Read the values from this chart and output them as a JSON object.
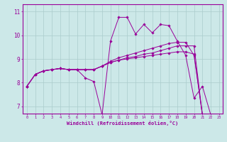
{
  "xlabel": "Windchill (Refroidissement éolien,°C)",
  "background_color": "#cce8e8",
  "grid_color": "#aacccc",
  "line_color": "#990099",
  "xlim": [
    -0.5,
    23.4
  ],
  "ylim": [
    6.7,
    11.3
  ],
  "yticks": [
    7,
    8,
    9,
    10,
    11
  ],
  "xticks": [
    0,
    1,
    2,
    3,
    4,
    5,
    6,
    7,
    8,
    9,
    10,
    11,
    12,
    13,
    14,
    15,
    16,
    17,
    18,
    19,
    20,
    21,
    22,
    23
  ],
  "series": [
    {
      "x": [
        0,
        1,
        2,
        3,
        4,
        5,
        6,
        7,
        8,
        9,
        10,
        11,
        12,
        13,
        14,
        15,
        16,
        17,
        18,
        19,
        20,
        21,
        22,
        23
      ],
      "y": [
        7.85,
        8.35,
        8.5,
        8.55,
        8.6,
        8.55,
        8.55,
        8.2,
        8.05,
        6.65,
        9.75,
        10.75,
        10.75,
        10.05,
        10.45,
        10.1,
        10.45,
        10.4,
        9.75,
        9.15,
        7.35,
        7.85,
        6.65,
        6.65
      ]
    },
    {
      "x": [
        0,
        1,
        2,
        3,
        4,
        5,
        6,
        7,
        8,
        9,
        10,
        11,
        12,
        13,
        14,
        15,
        16,
        17,
        18,
        19,
        20,
        21,
        22,
        23
      ],
      "y": [
        7.85,
        8.35,
        8.5,
        8.55,
        8.6,
        8.55,
        8.55,
        8.55,
        8.55,
        8.7,
        8.85,
        8.95,
        9.05,
        9.1,
        9.2,
        9.25,
        9.35,
        9.45,
        9.55,
        9.55,
        9.55,
        6.65,
        6.65,
        6.65
      ]
    },
    {
      "x": [
        0,
        1,
        2,
        3,
        4,
        5,
        6,
        7,
        8,
        9,
        10,
        11,
        12,
        13,
        14,
        15,
        16,
        17,
        18,
        19,
        20,
        21,
        22,
        23
      ],
      "y": [
        7.85,
        8.35,
        8.5,
        8.55,
        8.6,
        8.55,
        8.55,
        8.55,
        8.55,
        8.7,
        8.9,
        9.05,
        9.15,
        9.25,
        9.35,
        9.45,
        9.55,
        9.65,
        9.7,
        9.7,
        9.15,
        6.65,
        6.65,
        6.65
      ]
    },
    {
      "x": [
        0,
        1,
        2,
        3,
        4,
        5,
        6,
        7,
        8,
        9,
        10,
        11,
        12,
        13,
        14,
        15,
        16,
        17,
        18,
        19,
        20,
        21,
        22,
        23
      ],
      "y": [
        7.85,
        8.35,
        8.5,
        8.55,
        8.6,
        8.55,
        8.55,
        8.55,
        8.55,
        8.7,
        8.85,
        8.95,
        9.0,
        9.05,
        9.1,
        9.15,
        9.2,
        9.25,
        9.3,
        9.3,
        9.2,
        6.65,
        6.65,
        6.65
      ]
    }
  ]
}
